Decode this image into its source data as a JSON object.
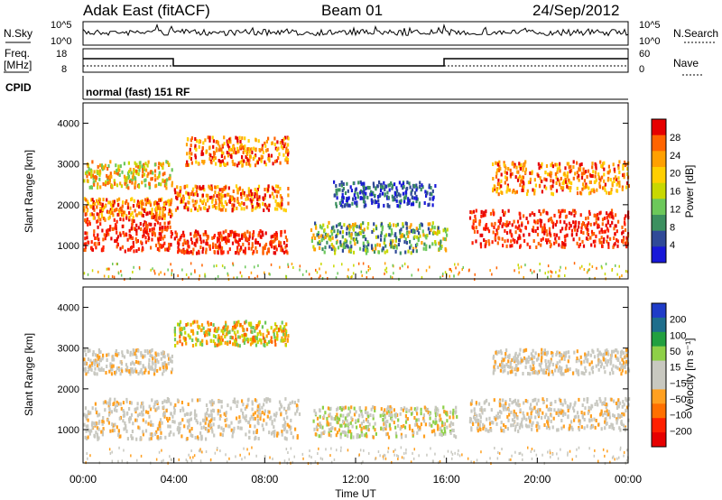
{
  "header": {
    "title": "Adak East (fitACF)",
    "beam": "Beam 01",
    "date": "24/Sep/2012"
  },
  "noise_panel": {
    "left_label": "N.Sky",
    "right_label": "N.Search",
    "left_ticks": [
      "10^5",
      "10^0"
    ],
    "right_ticks": [
      "10^5",
      "10^0"
    ]
  },
  "freq_panel": {
    "label_line1": "Freq.",
    "label_line2": "[MHz]",
    "left_ticks": [
      "18",
      "8"
    ],
    "right_label": "Nave",
    "right_ticks": [
      "60",
      "0"
    ]
  },
  "cpid_panel": {
    "label": "CPID",
    "value": "normal (fast) 151 RF"
  },
  "chart_data": [
    {
      "type": "heatmap",
      "title": "",
      "ylabel": "Slant Range [km]",
      "ylim": [
        180,
        4500
      ],
      "yticks": [
        "1000",
        "2000",
        "3000",
        "4000"
      ],
      "xlabel": "",
      "xlim": [
        "00:00",
        "24:00"
      ],
      "colorbar": {
        "label": "Power [dB]",
        "ticks": [
          "28",
          "24",
          "20",
          "16",
          "12",
          "8",
          "4"
        ],
        "colors": [
          "#e60000",
          "#ff6400",
          "#ffa000",
          "#ffcf00",
          "#c8d800",
          "#6cc85a",
          "#3c9060",
          "#304a98",
          "#1818d8"
        ]
      },
      "echo_bands": [
        {
          "t": [
            0,
            3.9
          ],
          "r": [
            900,
            1700
          ],
          "level": "red"
        },
        {
          "t": [
            0,
            3.9
          ],
          "r": [
            1700,
            2200
          ],
          "level": "orange"
        },
        {
          "t": [
            0,
            3.9
          ],
          "r": [
            2450,
            3100
          ],
          "level": "mixed"
        },
        {
          "t": [
            4.0,
            9.0
          ],
          "r": [
            850,
            1400
          ],
          "level": "red"
        },
        {
          "t": [
            4.0,
            9.0
          ],
          "r": [
            1900,
            2500
          ],
          "level": "orange"
        },
        {
          "t": [
            4.5,
            9.0
          ],
          "r": [
            3000,
            3700
          ],
          "level": "orange"
        },
        {
          "t": [
            10.0,
            16.0
          ],
          "r": [
            850,
            1600
          ],
          "level": "green"
        },
        {
          "t": [
            11.0,
            15.5
          ],
          "r": [
            2000,
            2600
          ],
          "level": "blue"
        },
        {
          "t": [
            17.0,
            24.0
          ],
          "r": [
            1000,
            1900
          ],
          "level": "red"
        },
        {
          "t": [
            18.0,
            24.0
          ],
          "r": [
            2300,
            3100
          ],
          "level": "orange"
        }
      ]
    },
    {
      "type": "heatmap",
      "title": "",
      "ylabel": "Slant Range [km]",
      "ylim": [
        180,
        4500
      ],
      "yticks": [
        "1000",
        "2000",
        "3000",
        "4000"
      ],
      "xlabel": "Time UT",
      "xlim": [
        "00:00",
        "24:00"
      ],
      "xticks": [
        "00:00",
        "04:00",
        "08:00",
        "12:00",
        "16:00",
        "20:00",
        "00:00"
      ],
      "colorbar": {
        "label": "Velocity [m s⁻¹]",
        "ticks": [
          "200",
          "100",
          "50",
          "15",
          "−15",
          "−50",
          "−100",
          "−200"
        ],
        "colors": [
          "#1f3cc8",
          "#1e6e8c",
          "#22a040",
          "#8ed048",
          "#c8c8c0",
          "#c8c8c0",
          "#ffa020",
          "#ff7000",
          "#ff2000",
          "#e60000"
        ]
      },
      "echo_bands": [
        {
          "t": [
            0,
            9.5
          ],
          "r": [
            800,
            1800
          ],
          "level": "grey"
        },
        {
          "t": [
            0,
            3.9
          ],
          "r": [
            2400,
            3000
          ],
          "level": "grey"
        },
        {
          "t": [
            4.0,
            9.0
          ],
          "r": [
            3100,
            3700
          ],
          "level": "mixed"
        },
        {
          "t": [
            10.0,
            16.5
          ],
          "r": [
            850,
            1600
          ],
          "level": "grey-green"
        },
        {
          "t": [
            17.0,
            24.0
          ],
          "r": [
            1000,
            1800
          ],
          "level": "grey"
        },
        {
          "t": [
            18.0,
            24.0
          ],
          "r": [
            2400,
            3000
          ],
          "level": "grey"
        }
      ]
    }
  ],
  "bottom_axis": {
    "xlabel": "Time UT",
    "ticks": [
      "00:00",
      "04:00",
      "08:00",
      "12:00",
      "16:00",
      "20:00",
      "00:00"
    ]
  }
}
